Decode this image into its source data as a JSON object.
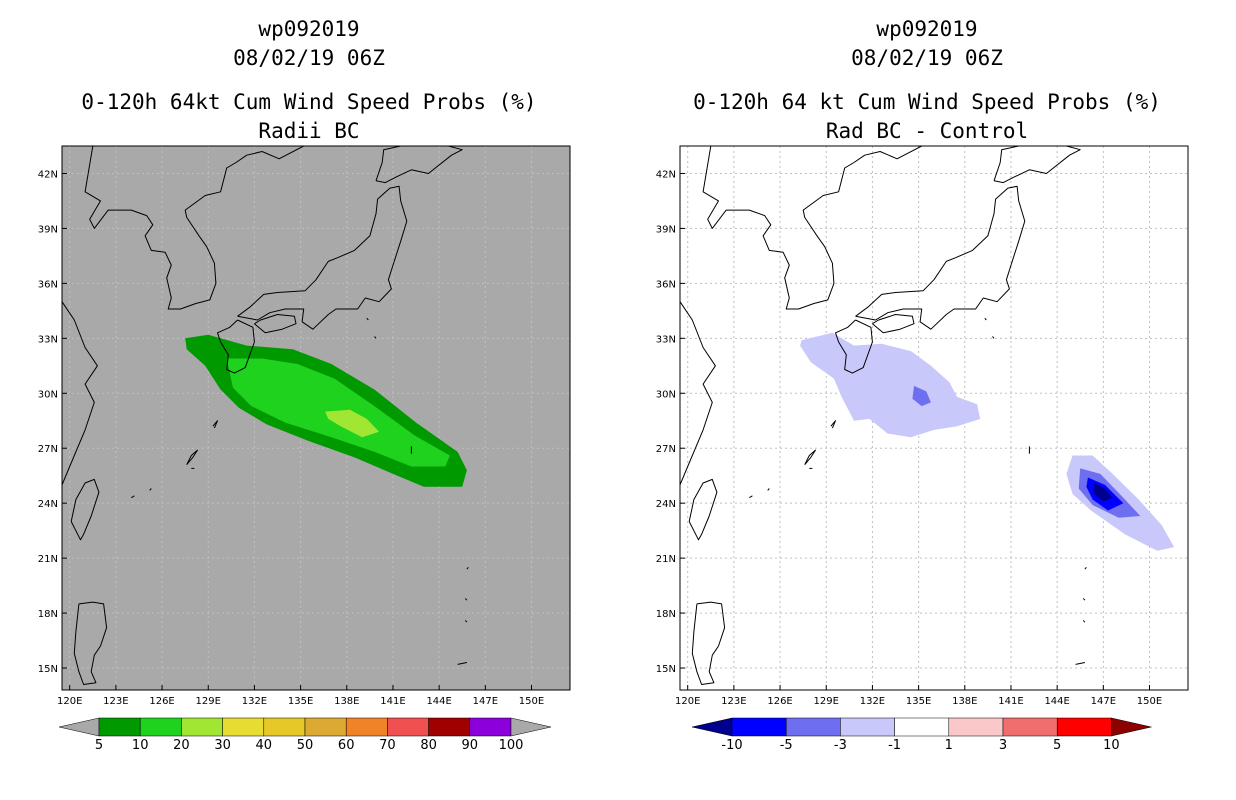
{
  "chart_data": [
    {
      "type": "contour-map",
      "storm_id": "wp092019",
      "datetime": "08/02/19 06Z",
      "title": "0-120h 64kt Cum Wind Speed Probs (%)",
      "subtitle": "Radii BC",
      "x_axis": {
        "range_deg_e": [
          119.5,
          152.5
        ],
        "ticks": [
          120,
          123,
          126,
          129,
          132,
          135,
          138,
          141,
          144,
          147,
          150
        ],
        "tick_labels": [
          "120E",
          "123E",
          "126E",
          "129E",
          "132E",
          "135E",
          "138E",
          "141E",
          "144E",
          "147E",
          "150E"
        ]
      },
      "y_axis": {
        "range_deg_n": [
          13.8,
          43.5
        ],
        "ticks": [
          15,
          18,
          21,
          24,
          27,
          30,
          33,
          36,
          39,
          42
        ],
        "tick_labels": [
          "15N",
          "18N",
          "21N",
          "24N",
          "27N",
          "30N",
          "33N",
          "36N",
          "39N",
          "42N"
        ]
      },
      "background_color": "#a9a9a9",
      "colorbar": {
        "labels": [
          "5",
          "10",
          "20",
          "30",
          "40",
          "50",
          "60",
          "70",
          "80",
          "90",
          "100"
        ],
        "colors": [
          "#009900",
          "#1ed21e",
          "#a0e632",
          "#e6dc32",
          "#e6c828",
          "#dcaa32",
          "#f08228",
          "#f05050",
          "#a00000",
          "#8c00dc"
        ],
        "end_color": "#a9a9a9"
      },
      "contours": [
        {
          "level": 5,
          "color": "#009900",
          "points": [
            [
              127.5,
              33.0
            ],
            [
              129.0,
              33.2
            ],
            [
              131.5,
              32.6
            ],
            [
              134.5,
              32.4
            ],
            [
              137.0,
              31.6
            ],
            [
              139.8,
              30.2
            ],
            [
              142.5,
              28.4
            ],
            [
              145.2,
              26.8
            ],
            [
              145.8,
              25.8
            ],
            [
              145.5,
              24.9
            ],
            [
              143.0,
              24.9
            ],
            [
              141.0,
              25.6
            ],
            [
              138.5,
              26.5
            ],
            [
              135.5,
              27.4
            ],
            [
              132.8,
              28.3
            ],
            [
              131.0,
              29.2
            ],
            [
              129.8,
              30.2
            ],
            [
              128.8,
              31.5
            ],
            [
              127.6,
              32.4
            ]
          ]
        },
        {
          "level": 10,
          "color": "#1ed21e",
          "points": [
            [
              130.2,
              31.9
            ],
            [
              132.5,
              31.9
            ],
            [
              134.8,
              31.6
            ],
            [
              137.2,
              30.8
            ],
            [
              139.8,
              29.3
            ],
            [
              142.4,
              27.7
            ],
            [
              144.7,
              26.6
            ],
            [
              144.4,
              26.0
            ],
            [
              142.2,
              26.0
            ],
            [
              139.8,
              26.8
            ],
            [
              137.0,
              27.6
            ],
            [
              134.0,
              28.4
            ],
            [
              131.8,
              29.3
            ],
            [
              130.6,
              30.3
            ]
          ]
        },
        {
          "level": 20,
          "color": "#a0e632",
          "points": [
            [
              136.6,
              29.0
            ],
            [
              138.2,
              29.1
            ],
            [
              139.3,
              28.6
            ],
            [
              140.1,
              27.9
            ],
            [
              139.0,
              27.6
            ],
            [
              137.6,
              28.2
            ],
            [
              136.8,
              28.6
            ]
          ]
        }
      ]
    },
    {
      "type": "contour-map",
      "storm_id": "wp092019",
      "datetime": "08/02/19 06Z",
      "title": "0-120h 64 kt Cum Wind Speed Probs (%)",
      "subtitle": "Rad BC - Control",
      "x_axis": {
        "range_deg_e": [
          119.5,
          152.5
        ],
        "ticks": [
          120,
          123,
          126,
          129,
          132,
          135,
          138,
          141,
          144,
          147,
          150
        ],
        "tick_labels": [
          "120E",
          "123E",
          "126E",
          "129E",
          "132E",
          "135E",
          "138E",
          "141E",
          "144E",
          "147E",
          "150E"
        ]
      },
      "y_axis": {
        "range_deg_n": [
          13.8,
          43.5
        ],
        "ticks": [
          15,
          18,
          21,
          24,
          27,
          30,
          33,
          36,
          39,
          42
        ],
        "tick_labels": [
          "15N",
          "18N",
          "21N",
          "24N",
          "27N",
          "30N",
          "33N",
          "36N",
          "39N",
          "42N"
        ]
      },
      "background_color": "#ffffff",
      "colorbar": {
        "labels": [
          "-10",
          "-5",
          "-3",
          "-1",
          "1",
          "3",
          "5",
          "10"
        ],
        "colors": [
          "#0000ff",
          "#6e6ef0",
          "#c8c8fa",
          "#ffffff",
          "#fac8c8",
          "#f06e6e",
          "#ff0000"
        ],
        "end_left_color": "#00008c",
        "end_right_color": "#8c0000"
      },
      "contours": [
        {
          "level": -1,
          "color": "#c8c8fa",
          "points": [
            [
              127.4,
              32.9
            ],
            [
              129.4,
              33.3
            ],
            [
              130.8,
              32.6
            ],
            [
              132.6,
              32.7
            ],
            [
              134.5,
              32.3
            ],
            [
              135.8,
              31.5
            ],
            [
              137.0,
              30.6
            ],
            [
              137.5,
              29.8
            ],
            [
              138.8,
              29.4
            ],
            [
              139.0,
              28.6
            ],
            [
              137.5,
              28.2
            ],
            [
              136.0,
              28.0
            ],
            [
              134.5,
              27.6
            ],
            [
              133.0,
              27.8
            ],
            [
              131.8,
              28.6
            ],
            [
              130.8,
              28.5
            ],
            [
              130.0,
              29.8
            ],
            [
              129.5,
              30.8
            ],
            [
              128.0,
              31.7
            ],
            [
              127.3,
              32.6
            ]
          ]
        },
        {
          "level": -3,
          "color": "#6e6ef0",
          "points": [
            [
              134.7,
              30.4
            ],
            [
              135.5,
              30.1
            ],
            [
              135.8,
              29.5
            ],
            [
              135.2,
              29.3
            ],
            [
              134.6,
              29.7
            ]
          ]
        },
        {
          "level": -1,
          "color": "#c8c8fa",
          "points": [
            [
              145.0,
              26.6
            ],
            [
              146.3,
              26.6
            ],
            [
              147.6,
              25.6
            ],
            [
              149.3,
              24.2
            ],
            [
              150.8,
              22.8
            ],
            [
              151.6,
              21.6
            ],
            [
              150.5,
              21.4
            ],
            [
              148.4,
              22.3
            ],
            [
              146.2,
              23.6
            ],
            [
              145.0,
              24.5
            ],
            [
              144.6,
              25.6
            ]
          ]
        },
        {
          "level": -3,
          "color": "#6e6ef0",
          "points": [
            [
              145.5,
              25.9
            ],
            [
              146.8,
              25.6
            ],
            [
              148.3,
              24.3
            ],
            [
              149.4,
              23.3
            ],
            [
              148.0,
              23.2
            ],
            [
              146.3,
              23.9
            ],
            [
              145.4,
              24.8
            ]
          ]
        },
        {
          "level": -5,
          "color": "#0000ff",
          "points": [
            [
              146.0,
              25.4
            ],
            [
              147.1,
              25.0
            ],
            [
              148.3,
              24.0
            ],
            [
              147.3,
              23.6
            ],
            [
              146.3,
              24.2
            ],
            [
              145.9,
              24.9
            ]
          ]
        },
        {
          "level": -10,
          "color": "#00008c",
          "points": [
            [
              146.4,
              25.1
            ],
            [
              147.1,
              24.8
            ],
            [
              147.6,
              24.3
            ],
            [
              147.0,
              24.1
            ],
            [
              146.4,
              24.5
            ]
          ]
        }
      ]
    }
  ]
}
